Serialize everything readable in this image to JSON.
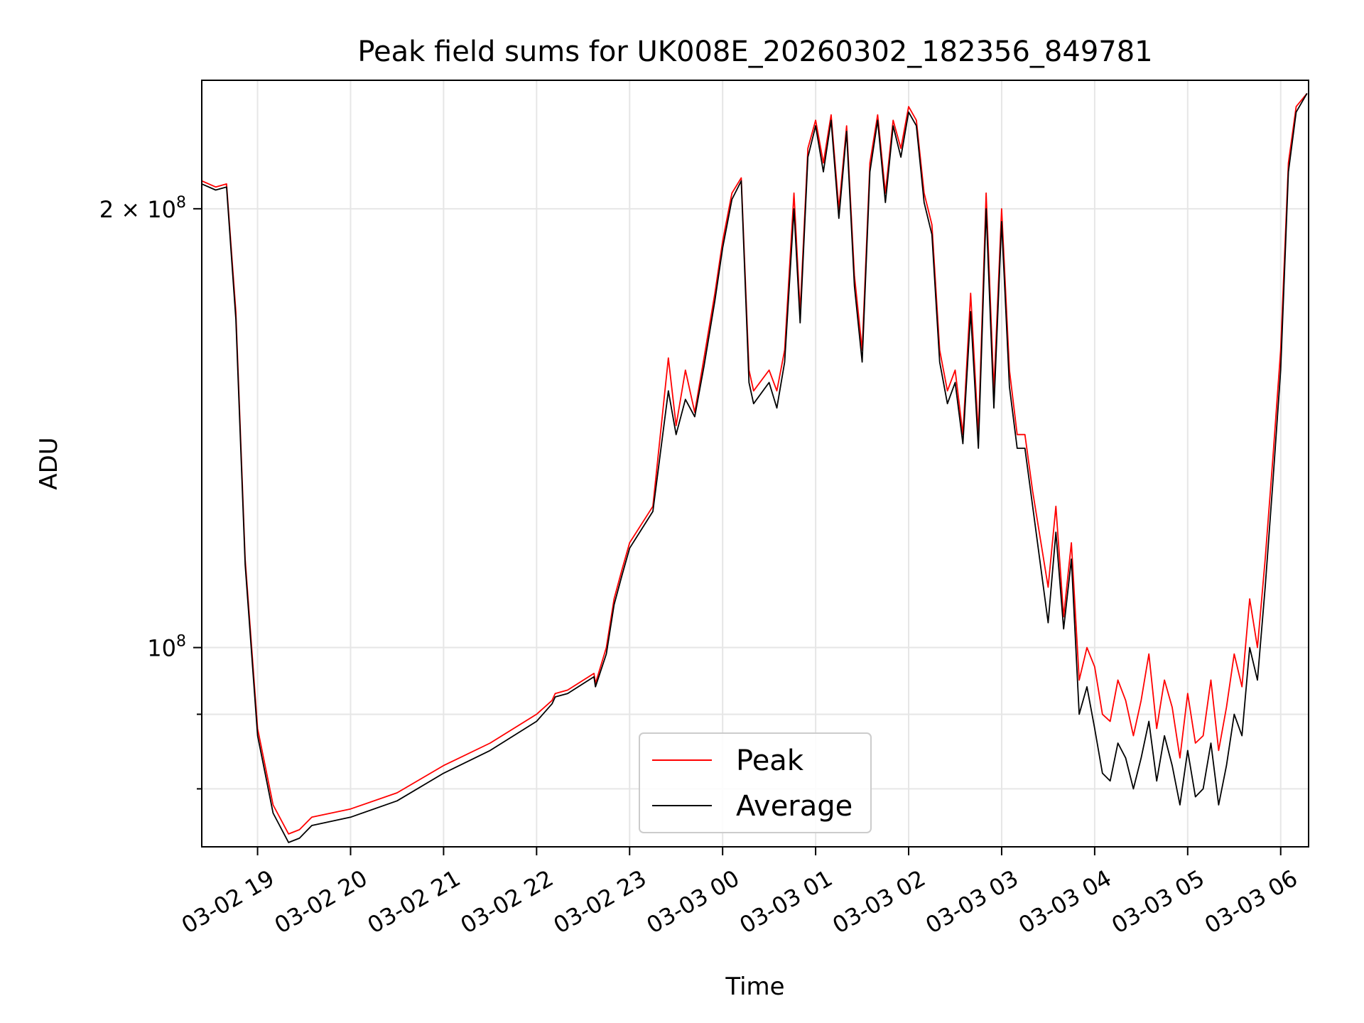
{
  "chart_data": {
    "type": "line",
    "title": "Peak field sums for UK008E_20260302_182356_849781",
    "xlabel": "Time",
    "ylabel": "ADU",
    "y_scale": "log",
    "grid": true,
    "legend_position": "lower center",
    "xlim": [
      "2026-03-02 18:24",
      "2026-03-03 06:18"
    ],
    "ylim": [
      73000000,
      245000000
    ],
    "x_ticks": [
      {
        "value": "2026-03-02 19:00",
        "label": "03-02 19"
      },
      {
        "value": "2026-03-02 20:00",
        "label": "03-02 20"
      },
      {
        "value": "2026-03-02 21:00",
        "label": "03-02 21"
      },
      {
        "value": "2026-03-02 22:00",
        "label": "03-02 22"
      },
      {
        "value": "2026-03-02 23:00",
        "label": "03-02 23"
      },
      {
        "value": "2026-03-03 00:00",
        "label": "03-03 00"
      },
      {
        "value": "2026-03-03 01:00",
        "label": "03-03 01"
      },
      {
        "value": "2026-03-03 02:00",
        "label": "03-03 02"
      },
      {
        "value": "2026-03-03 03:00",
        "label": "03-03 03"
      },
      {
        "value": "2026-03-03 04:00",
        "label": "03-03 04"
      },
      {
        "value": "2026-03-03 05:00",
        "label": "03-03 05"
      },
      {
        "value": "2026-03-03 06:00",
        "label": "03-03 06"
      }
    ],
    "y_ticks": [
      {
        "value": 100000000,
        "label_base": "10",
        "label_exp": "8",
        "label_prefix": ""
      },
      {
        "value": 200000000,
        "label_base": "10",
        "label_exp": "8",
        "label_prefix": "2 × "
      }
    ],
    "y_minor_ticks": [
      80000000,
      90000000
    ],
    "series": [
      {
        "name": "Peak",
        "color": "#ff0000",
        "x": [
          "2026-03-02 18:24",
          "2026-03-02 18:33",
          "2026-03-02 18:40",
          "2026-03-02 18:46",
          "2026-03-02 18:52",
          "2026-03-02 19:00",
          "2026-03-02 19:10",
          "2026-03-02 19:20",
          "2026-03-02 19:27",
          "2026-03-02 19:35",
          "2026-03-02 20:00",
          "2026-03-02 20:30",
          "2026-03-02 21:00",
          "2026-03-02 21:30",
          "2026-03-02 22:00",
          "2026-03-02 22:10",
          "2026-03-02 22:12",
          "2026-03-02 22:20",
          "2026-03-02 22:37",
          "2026-03-02 22:38",
          "2026-03-02 22:45",
          "2026-03-02 22:50",
          "2026-03-02 22:55",
          "2026-03-02 23:00",
          "2026-03-02 23:15",
          "2026-03-02 23:25",
          "2026-03-02 23:30",
          "2026-03-02 23:36",
          "2026-03-02 23:42",
          "2026-03-02 23:48",
          "2026-03-02 23:55",
          "2026-03-03 00:00",
          "2026-03-03 00:06",
          "2026-03-03 00:12",
          "2026-03-03 00:17",
          "2026-03-03 00:20",
          "2026-03-03 00:30",
          "2026-03-03 00:35",
          "2026-03-03 00:40",
          "2026-03-03 00:46",
          "2026-03-03 00:50",
          "2026-03-03 00:55",
          "2026-03-03 01:00",
          "2026-03-03 01:05",
          "2026-03-03 01:10",
          "2026-03-03 01:15",
          "2026-03-03 01:20",
          "2026-03-03 01:25",
          "2026-03-03 01:30",
          "2026-03-03 01:35",
          "2026-03-03 01:40",
          "2026-03-03 01:45",
          "2026-03-03 01:50",
          "2026-03-03 01:55",
          "2026-03-03 02:00",
          "2026-03-03 02:05",
          "2026-03-03 02:10",
          "2026-03-03 02:15",
          "2026-03-03 02:20",
          "2026-03-03 02:25",
          "2026-03-03 02:30",
          "2026-03-03 02:35",
          "2026-03-03 02:40",
          "2026-03-03 02:45",
          "2026-03-03 02:50",
          "2026-03-03 02:55",
          "2026-03-03 03:00",
          "2026-03-03 03:05",
          "2026-03-03 03:10",
          "2026-03-03 03:15",
          "2026-03-03 03:20",
          "2026-03-03 03:30",
          "2026-03-03 03:35",
          "2026-03-03 03:40",
          "2026-03-03 03:45",
          "2026-03-03 03:50",
          "2026-03-03 03:55",
          "2026-03-03 04:00",
          "2026-03-03 04:05",
          "2026-03-03 04:10",
          "2026-03-03 04:15",
          "2026-03-03 04:20",
          "2026-03-03 04:25",
          "2026-03-03 04:30",
          "2026-03-03 04:35",
          "2026-03-03 04:40",
          "2026-03-03 04:45",
          "2026-03-03 04:50",
          "2026-03-03 04:55",
          "2026-03-03 05:00",
          "2026-03-03 05:05",
          "2026-03-03 05:10",
          "2026-03-03 05:15",
          "2026-03-03 05:20",
          "2026-03-03 05:25",
          "2026-03-03 05:30",
          "2026-03-03 05:35",
          "2026-03-03 05:40",
          "2026-03-03 05:45",
          "2026-03-03 05:50",
          "2026-03-03 05:55",
          "2026-03-03 06:00",
          "2026-03-03 06:05",
          "2026-03-03 06:10",
          "2026-03-03 06:17"
        ],
        "y": [
          209000000,
          207000000,
          208000000,
          170000000,
          115000000,
          88000000,
          78000000,
          74500000,
          75000000,
          76500000,
          77500000,
          79500000,
          83000000,
          86000000,
          90000000,
          92000000,
          93000000,
          93500000,
          96000000,
          94500000,
          100000000,
          108000000,
          113000000,
          118000000,
          125000000,
          158000000,
          142000000,
          155000000,
          145000000,
          158000000,
          175000000,
          190000000,
          205000000,
          210000000,
          155000000,
          150000000,
          155000000,
          150000000,
          160000000,
          205000000,
          170000000,
          220000000,
          230000000,
          215000000,
          232000000,
          200000000,
          228000000,
          180000000,
          160000000,
          215000000,
          232000000,
          205000000,
          230000000,
          220000000,
          235000000,
          230000000,
          205000000,
          195000000,
          160000000,
          150000000,
          155000000,
          140000000,
          175000000,
          140000000,
          205000000,
          150000000,
          200000000,
          155000000,
          140000000,
          140000000,
          128000000,
          110000000,
          125000000,
          105000000,
          118000000,
          95000000,
          100000000,
          97000000,
          90000000,
          89000000,
          95000000,
          92000000,
          87000000,
          92000000,
          99000000,
          88000000,
          95000000,
          91000000,
          84000000,
          93000000,
          86000000,
          87000000,
          95000000,
          85000000,
          91000000,
          99000000,
          94000000,
          108000000,
          100000000,
          115000000,
          135000000,
          160000000,
          215000000,
          235000000,
          240000000
        ]
      },
      {
        "name": "Average",
        "color": "#000000",
        "x": [
          "2026-03-02 18:24",
          "2026-03-02 18:33",
          "2026-03-02 18:40",
          "2026-03-02 18:46",
          "2026-03-02 18:52",
          "2026-03-02 19:00",
          "2026-03-02 19:10",
          "2026-03-02 19:20",
          "2026-03-02 19:27",
          "2026-03-02 19:35",
          "2026-03-02 20:00",
          "2026-03-02 20:30",
          "2026-03-02 21:00",
          "2026-03-02 21:30",
          "2026-03-02 22:00",
          "2026-03-02 22:10",
          "2026-03-02 22:12",
          "2026-03-02 22:20",
          "2026-03-02 22:37",
          "2026-03-02 22:38",
          "2026-03-02 22:45",
          "2026-03-02 22:50",
          "2026-03-02 22:55",
          "2026-03-02 23:00",
          "2026-03-02 23:15",
          "2026-03-02 23:25",
          "2026-03-02 23:30",
          "2026-03-02 23:36",
          "2026-03-02 23:42",
          "2026-03-02 23:48",
          "2026-03-02 23:55",
          "2026-03-03 00:00",
          "2026-03-03 00:06",
          "2026-03-03 00:12",
          "2026-03-03 00:17",
          "2026-03-03 00:20",
          "2026-03-03 00:30",
          "2026-03-03 00:35",
          "2026-03-03 00:40",
          "2026-03-03 00:46",
          "2026-03-03 00:50",
          "2026-03-03 00:55",
          "2026-03-03 01:00",
          "2026-03-03 01:05",
          "2026-03-03 01:10",
          "2026-03-03 01:15",
          "2026-03-03 01:20",
          "2026-03-03 01:25",
          "2026-03-03 01:30",
          "2026-03-03 01:35",
          "2026-03-03 01:40",
          "2026-03-03 01:45",
          "2026-03-03 01:50",
          "2026-03-03 01:55",
          "2026-03-03 02:00",
          "2026-03-03 02:05",
          "2026-03-03 02:10",
          "2026-03-03 02:15",
          "2026-03-03 02:20",
          "2026-03-03 02:25",
          "2026-03-03 02:30",
          "2026-03-03 02:35",
          "2026-03-03 02:40",
          "2026-03-03 02:45",
          "2026-03-03 02:50",
          "2026-03-03 02:55",
          "2026-03-03 03:00",
          "2026-03-03 03:05",
          "2026-03-03 03:10",
          "2026-03-03 03:15",
          "2026-03-03 03:20",
          "2026-03-03 03:30",
          "2026-03-03 03:35",
          "2026-03-03 03:40",
          "2026-03-03 03:45",
          "2026-03-03 03:50",
          "2026-03-03 03:55",
          "2026-03-03 04:00",
          "2026-03-03 04:05",
          "2026-03-03 04:10",
          "2026-03-03 04:15",
          "2026-03-03 04:20",
          "2026-03-03 04:25",
          "2026-03-03 04:30",
          "2026-03-03 04:35",
          "2026-03-03 04:40",
          "2026-03-03 04:45",
          "2026-03-03 04:50",
          "2026-03-03 04:55",
          "2026-03-03 05:00",
          "2026-03-03 05:05",
          "2026-03-03 05:10",
          "2026-03-03 05:15",
          "2026-03-03 05:20",
          "2026-03-03 05:25",
          "2026-03-03 05:30",
          "2026-03-03 05:35",
          "2026-03-03 05:40",
          "2026-03-03 05:45",
          "2026-03-03 05:50",
          "2026-03-03 05:55",
          "2026-03-03 06:00",
          "2026-03-03 06:05",
          "2026-03-03 06:10",
          "2026-03-03 06:17"
        ],
        "y": [
          208000000,
          206000000,
          207000000,
          168000000,
          114000000,
          87000000,
          77000000,
          73500000,
          74000000,
          75500000,
          76500000,
          78500000,
          82000000,
          85000000,
          89000000,
          91500000,
          92500000,
          93000000,
          95500000,
          94000000,
          99000000,
          107000000,
          112000000,
          117000000,
          124000000,
          150000000,
          140000000,
          148000000,
          144000000,
          156000000,
          173000000,
          188000000,
          203000000,
          209000000,
          152000000,
          147000000,
          152000000,
          146000000,
          157000000,
          200000000,
          167000000,
          217000000,
          228000000,
          212000000,
          230000000,
          197000000,
          226000000,
          177000000,
          157000000,
          212000000,
          230000000,
          202000000,
          228000000,
          217000000,
          233000000,
          228000000,
          202000000,
          192000000,
          157000000,
          147000000,
          152000000,
          138000000,
          170000000,
          137000000,
          200000000,
          146000000,
          196000000,
          151000000,
          137000000,
          137000000,
          125000000,
          104000000,
          120000000,
          103000000,
          115000000,
          90000000,
          94000000,
          88000000,
          82000000,
          81000000,
          86000000,
          84000000,
          80000000,
          84000000,
          89000000,
          81000000,
          87000000,
          83000000,
          78000000,
          85000000,
          79000000,
          80000000,
          86000000,
          78000000,
          83000000,
          90000000,
          87000000,
          100000000,
          95000000,
          110000000,
          130000000,
          155000000,
          212000000,
          233000000,
          240000000
        ]
      }
    ]
  }
}
